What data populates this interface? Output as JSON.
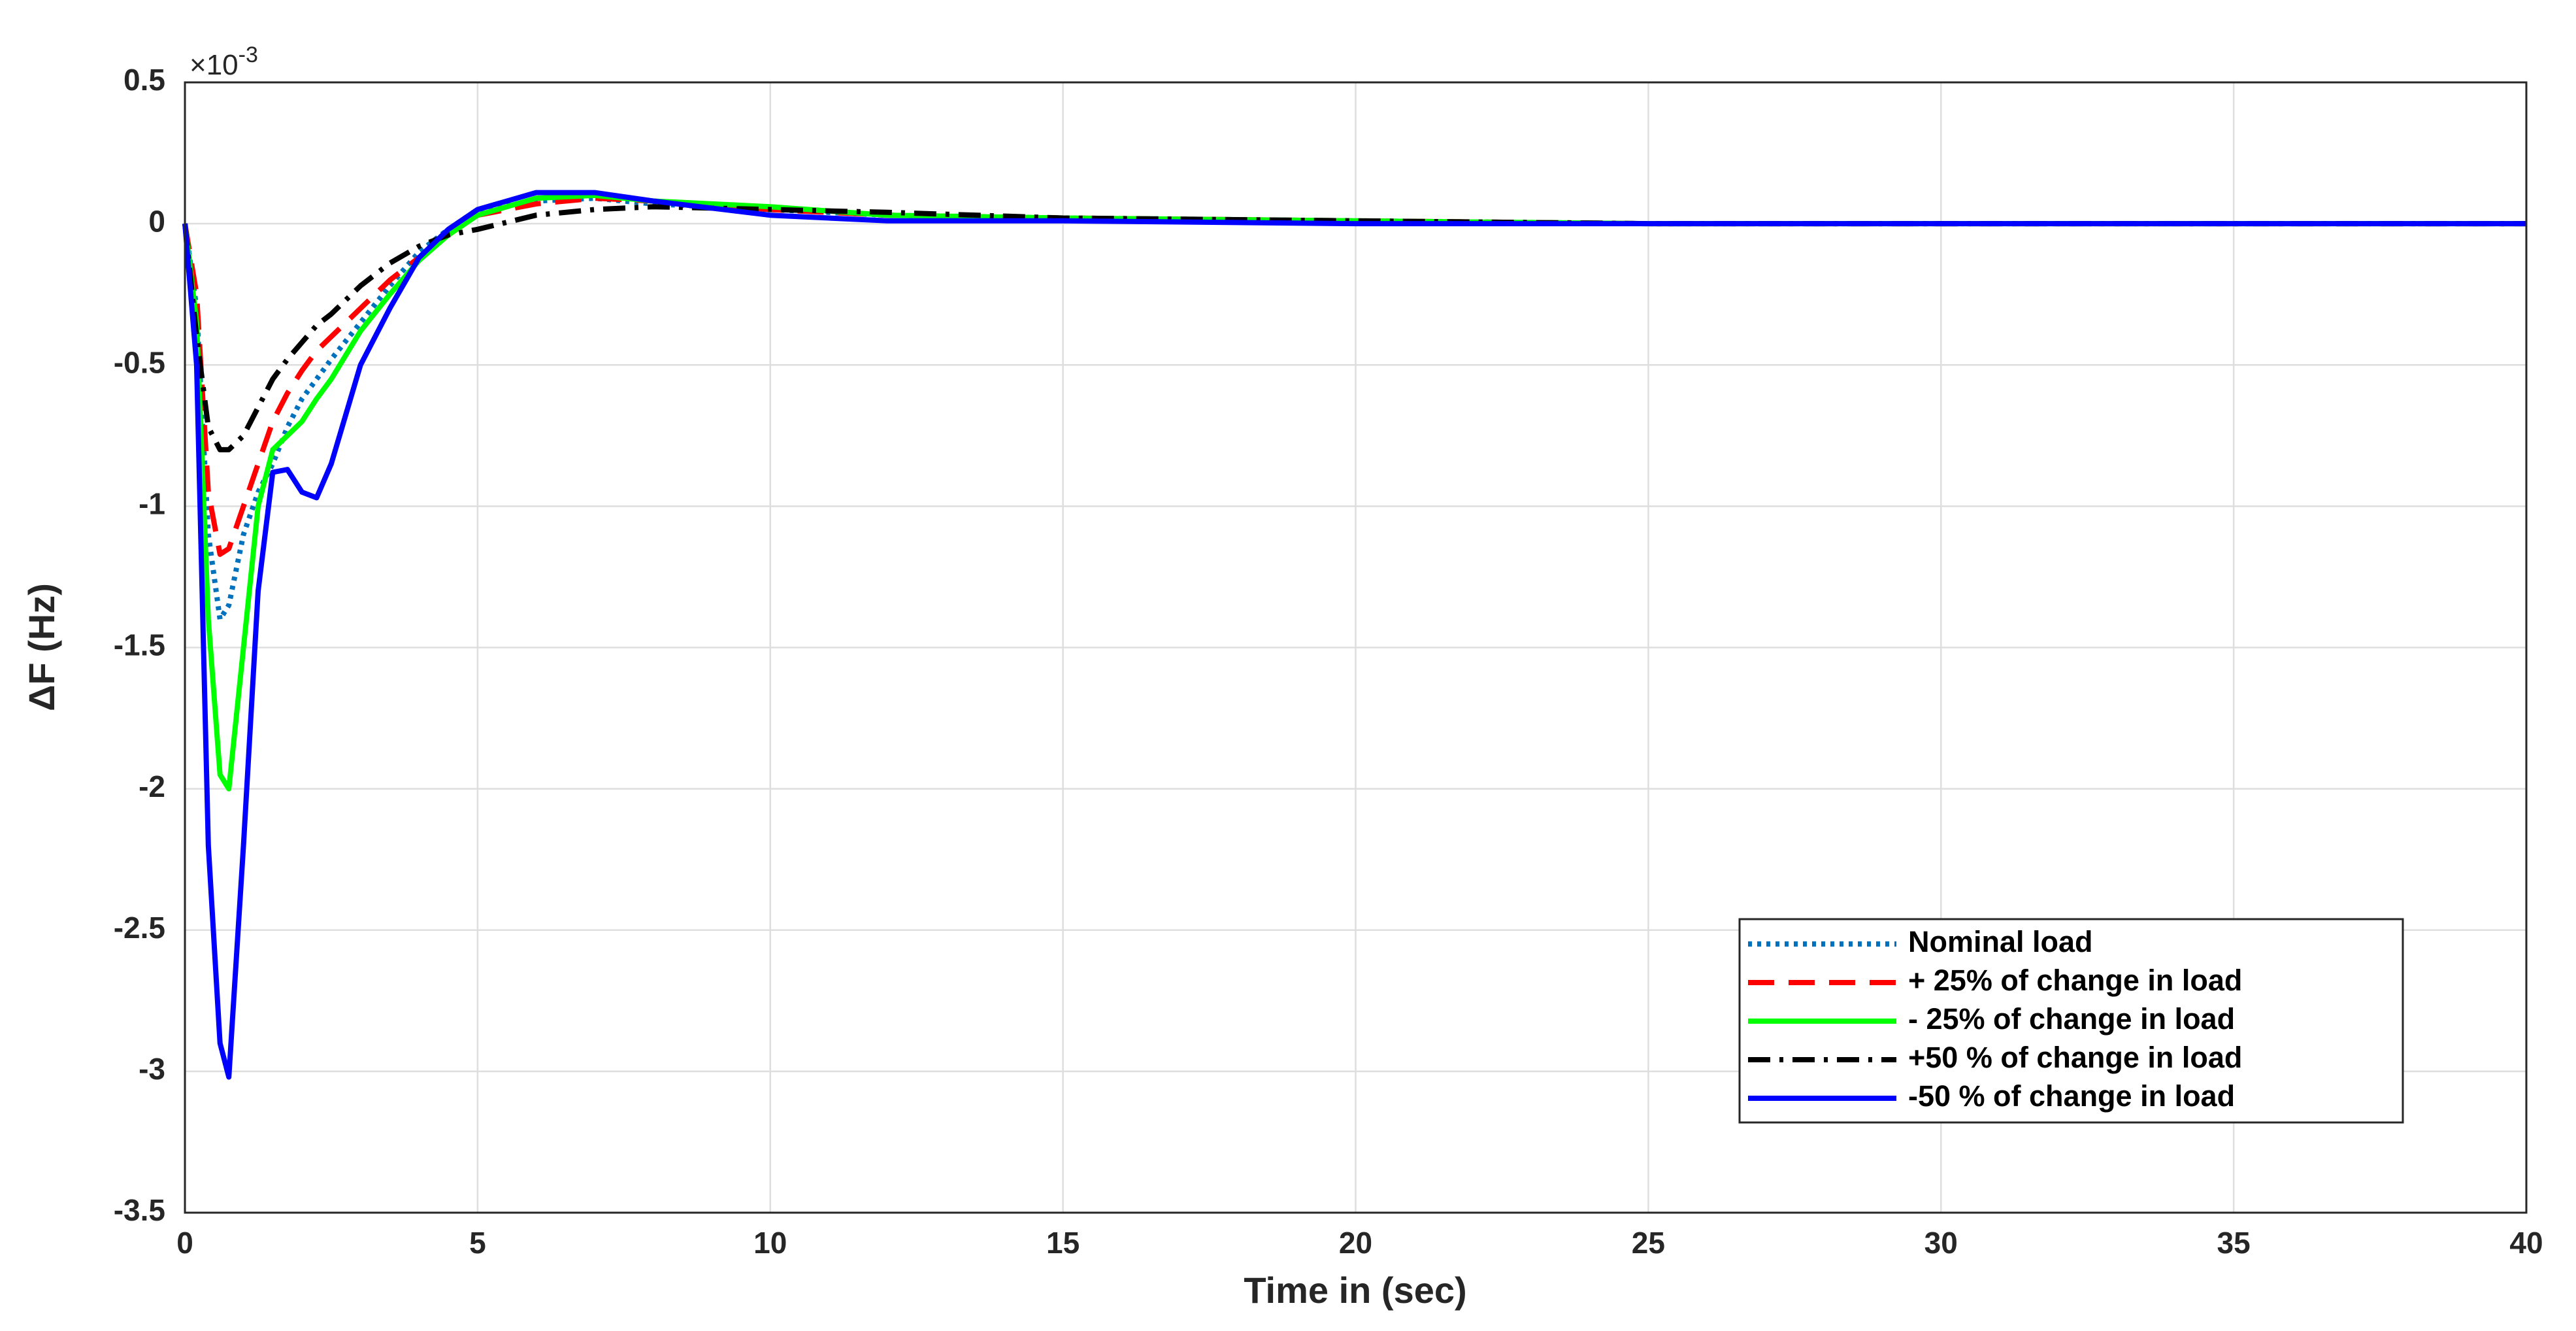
{
  "chart_data": {
    "type": "line",
    "xlabel": "Time in (sec)",
    "ylabel": "ΔF (Hz)",
    "y_multiplier": {
      "base": "×10",
      "exponent": "-3"
    },
    "x": [
      0,
      0.2,
      0.4,
      0.6,
      0.75,
      1,
      1.25,
      1.5,
      1.75,
      2,
      2.25,
      2.5,
      3,
      3.5,
      4,
      4.5,
      5,
      6,
      7,
      8,
      10,
      12,
      15,
      20,
      25,
      30,
      40
    ],
    "series": [
      {
        "name": "Nominal load",
        "color": "#0072bd",
        "linestyle": "dotted",
        "values": [
          0,
          -0.3,
          -1.1,
          -1.4,
          -1.35,
          -1.1,
          -0.95,
          -0.85,
          -0.72,
          -0.62,
          -0.55,
          -0.48,
          -0.35,
          -0.22,
          -0.1,
          -0.02,
          0.05,
          0.08,
          0.09,
          0.07,
          0.05,
          0.03,
          0.02,
          0.01,
          0,
          0,
          0
        ]
      },
      {
        "name": "+ 25% of change in load",
        "color": "#ff0000",
        "linestyle": "dashed",
        "values": [
          0,
          -0.25,
          -0.95,
          -1.17,
          -1.15,
          -1.0,
          -0.85,
          -0.7,
          -0.6,
          -0.52,
          -0.45,
          -0.4,
          -0.3,
          -0.2,
          -0.12,
          -0.04,
          0.03,
          0.07,
          0.09,
          0.08,
          0.05,
          0.03,
          0.02,
          0.01,
          0,
          0,
          0
        ]
      },
      {
        "name": "- 25% of change in load",
        "color": "#00ff00",
        "linestyle": "solid",
        "values": [
          0,
          -0.35,
          -1.4,
          -1.95,
          -2.0,
          -1.5,
          -1.0,
          -0.8,
          -0.75,
          -0.7,
          -0.62,
          -0.55,
          -0.38,
          -0.25,
          -0.13,
          -0.04,
          0.03,
          0.09,
          0.1,
          0.08,
          0.06,
          0.03,
          0.02,
          0.01,
          0,
          0,
          0
        ]
      },
      {
        "name": "+50 % of change in load",
        "color": "#000000",
        "linestyle": "dashdot",
        "values": [
          0,
          -0.4,
          -0.72,
          -0.8,
          -0.8,
          -0.75,
          -0.65,
          -0.55,
          -0.48,
          -0.42,
          -0.36,
          -0.32,
          -0.22,
          -0.14,
          -0.08,
          -0.04,
          -0.02,
          0.03,
          0.05,
          0.06,
          0.05,
          0.04,
          0.02,
          0.01,
          0,
          0,
          0
        ]
      },
      {
        "name": "-50 % of change in load",
        "color": "#0000ff",
        "linestyle": "solid",
        "values": [
          0,
          -0.5,
          -2.2,
          -2.9,
          -3.02,
          -2.2,
          -1.3,
          -0.88,
          -0.87,
          -0.95,
          -0.97,
          -0.85,
          -0.5,
          -0.3,
          -0.12,
          -0.02,
          0.05,
          0.11,
          0.11,
          0.08,
          0.03,
          0.01,
          0.01,
          0,
          0,
          0,
          0
        ]
      }
    ],
    "xlim": [
      0,
      40
    ],
    "xticks": [
      0,
      5,
      10,
      15,
      20,
      25,
      30,
      35,
      40
    ],
    "ylim": [
      -3.5,
      0.5
    ],
    "yticks": [
      -3.5,
      -3,
      -2.5,
      -2,
      -1.5,
      -1,
      -0.5,
      0,
      0.5
    ],
    "grid": true,
    "legend": "lower right"
  }
}
